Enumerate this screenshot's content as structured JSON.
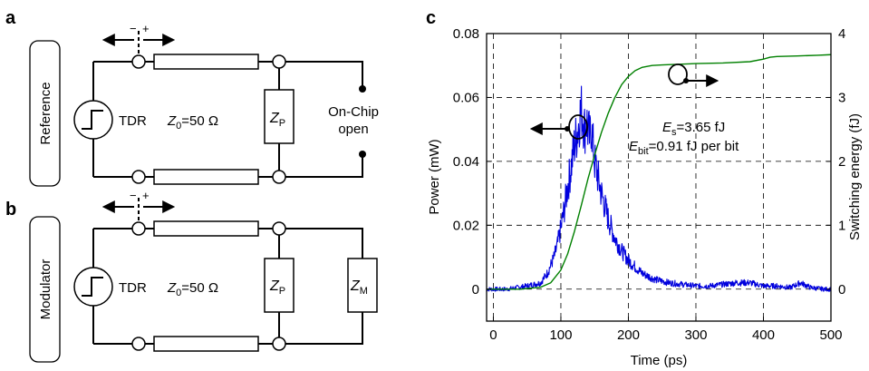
{
  "panels": {
    "a": "a",
    "b": "b",
    "c": "c"
  },
  "circuit_a": {
    "side_label": "Reference",
    "source_label": "TDR",
    "impedance_label": "Z",
    "impedance_sub": "0",
    "impedance_value": "=50 Ω",
    "zp_label": "Z",
    "zp_sub": "P",
    "load_line1": "On-Chip",
    "load_line2": "open",
    "probe_minus": "−",
    "probe_plus": "+"
  },
  "circuit_b": {
    "side_label": "Modulator",
    "source_label": "TDR",
    "impedance_label": "Z",
    "impedance_sub": "0",
    "impedance_value": "=50 Ω",
    "zp_label": "Z",
    "zp_sub": "P",
    "zm_label": "Z",
    "zm_sub": "M",
    "probe_minus": "−",
    "probe_plus": "+"
  },
  "chart_data": {
    "type": "line",
    "xlabel": "Time (ps)",
    "ylabel": "Power (mW)",
    "y2label": "Switching energy (fJ)",
    "xlim": [
      -10,
      500
    ],
    "ylim": [
      -0.01,
      0.08
    ],
    "y2lim": [
      -0.5,
      4
    ],
    "xticks": [
      "0",
      "100",
      "200",
      "300",
      "400",
      "500"
    ],
    "yticks": [
      "0",
      "0.02",
      "0.04",
      "0.06",
      "0.08"
    ],
    "y2ticks": [
      "0",
      "1",
      "2",
      "3",
      "4"
    ],
    "grid": true,
    "annotations": {
      "es_label": "E",
      "es_sub": "s",
      "es_value": "=3.65 fJ",
      "ebit_label": "E",
      "ebit_sub": "bit",
      "ebit_value": "=0.91 fJ per bit"
    },
    "series": [
      {
        "axis": "left",
        "color": "#0000dd",
        "x": [
          -10,
          20,
          50,
          70,
          80,
          90,
          95,
          100,
          105,
          110,
          115,
          120,
          125,
          128,
          130,
          132,
          135,
          138,
          140,
          143,
          145,
          148,
          150,
          155,
          160,
          165,
          170,
          175,
          180,
          190,
          200,
          210,
          220,
          240,
          260,
          280,
          300,
          320,
          340,
          360,
          380,
          400,
          420,
          440,
          455,
          470,
          490,
          500
        ],
        "y": [
          0.0,
          0.0,
          0.001,
          0.002,
          0.005,
          0.01,
          0.014,
          0.019,
          0.025,
          0.032,
          0.038,
          0.045,
          0.05,
          0.054,
          0.056,
          0.055,
          0.05,
          0.053,
          0.05,
          0.047,
          0.052,
          0.044,
          0.04,
          0.035,
          0.03,
          0.026,
          0.022,
          0.019,
          0.016,
          0.012,
          0.009,
          0.007,
          0.005,
          0.003,
          0.002,
          0.0015,
          0.001,
          0.001,
          0.0015,
          0.002,
          0.002,
          0.001,
          0.001,
          0.0005,
          0.002,
          0.0005,
          0.0,
          0.0
        ]
      },
      {
        "axis": "right",
        "color": "#008000",
        "x": [
          -10,
          40,
          70,
          85,
          100,
          110,
          120,
          130,
          140,
          150,
          160,
          170,
          180,
          190,
          200,
          210,
          220,
          235,
          250,
          275,
          300,
          340,
          380,
          400,
          410,
          420,
          450,
          480,
          500
        ],
        "y": [
          0.0,
          0.0,
          0.03,
          0.1,
          0.3,
          0.55,
          0.9,
          1.3,
          1.72,
          2.1,
          2.45,
          2.75,
          3.0,
          3.2,
          3.33,
          3.42,
          3.47,
          3.5,
          3.51,
          3.52,
          3.53,
          3.54,
          3.56,
          3.6,
          3.63,
          3.64,
          3.65,
          3.66,
          3.67
        ]
      }
    ]
  }
}
